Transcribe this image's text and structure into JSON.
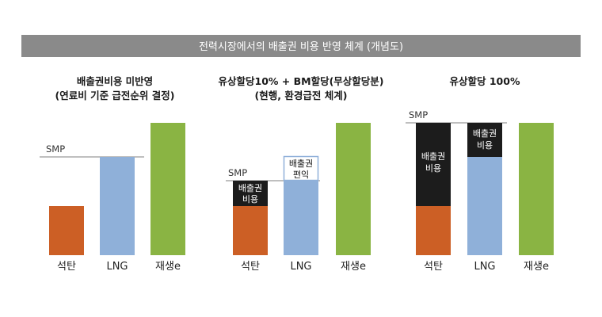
{
  "header": {
    "title": "전력시장에서의 배출권 비용 반영 체계 (개념도)"
  },
  "colors": {
    "header_bg": "#8a8a8a",
    "coal": "#cc5f25",
    "lng": "#8fb0d9",
    "renewable": "#8ab443",
    "emission": "#1c1c1c",
    "smp_line": "#999999"
  },
  "panels": [
    {
      "title_lines": [
        "배출권비용 미반영",
        "(연료비 기준 급전순위 결정)"
      ],
      "smp_label": "SMP",
      "categories": [
        "석탄",
        "LNG",
        "재생e"
      ]
    },
    {
      "title_lines": [
        "유상할당10% + BM할당(무상할당분)",
        "(현행, 환경급전 체계)"
      ],
      "smp_label": "SMP",
      "emission_label_coal": [
        "배출권",
        "비용"
      ],
      "emission_label_lng": [
        "배출권",
        "편익"
      ],
      "categories": [
        "석탄",
        "LNG",
        "재생e"
      ]
    },
    {
      "title_lines": [
        "유상할당 100%"
      ],
      "smp_label": "SMP",
      "emission_label_coal": [
        "배출권",
        "비용"
      ],
      "emission_label_lng": [
        "배출권",
        "비용"
      ],
      "categories": [
        "석탄",
        "LNG",
        "재생e"
      ]
    }
  ]
}
